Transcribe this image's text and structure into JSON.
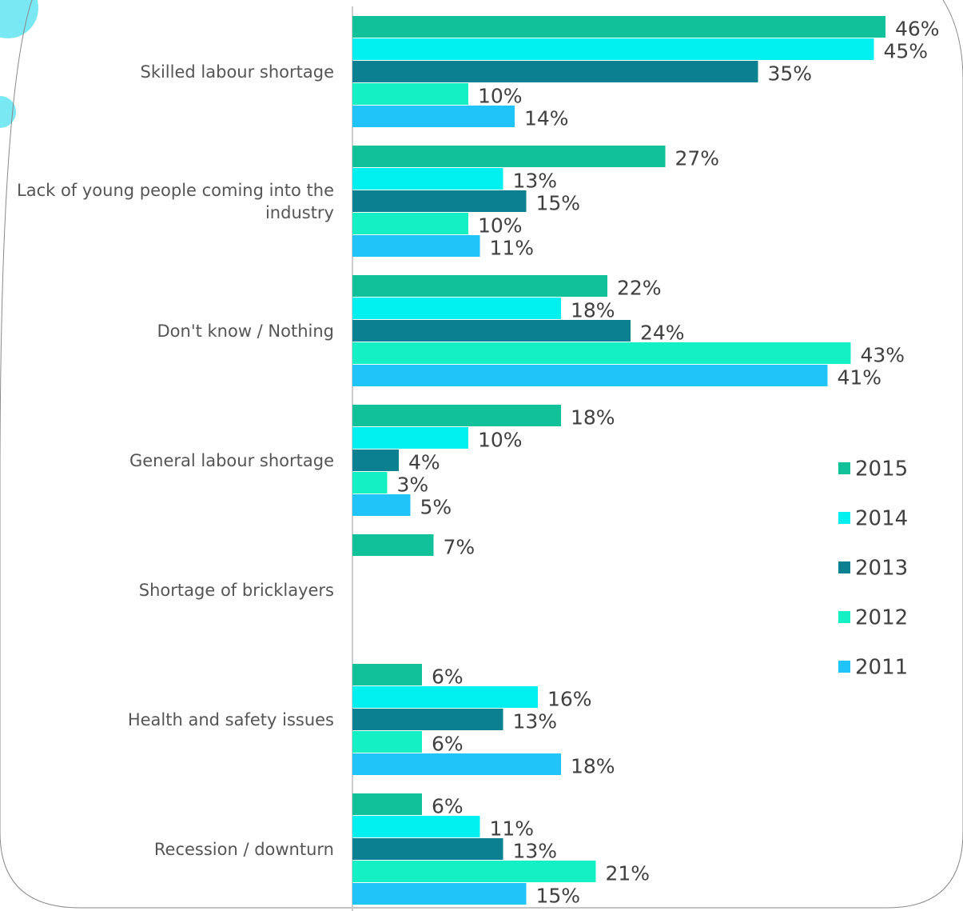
{
  "chart_data": {
    "type": "bar",
    "orientation": "horizontal",
    "categories": [
      "Skilled labour shortage",
      "Lack of young people coming into the industry",
      "Don't know / Nothing",
      "General labour shortage",
      "Shortage of bricklayers",
      "Health and safety issues",
      "Recession / downturn"
    ],
    "series": [
      {
        "name": "2015",
        "color": "#10c19a",
        "values": [
          46,
          27,
          22,
          18,
          7,
          6,
          6
        ],
        "value_labels": [
          "46%",
          "27%",
          "22%",
          "18%",
          "7%",
          "6%",
          "6%"
        ]
      },
      {
        "name": "2014",
        "color": "#00f0f0",
        "values": [
          45,
          13,
          18,
          10,
          null,
          16,
          11
        ],
        "value_labels": [
          "45%",
          "13%",
          "18%",
          "10%",
          null,
          "16%",
          "11%"
        ]
      },
      {
        "name": "2013",
        "color": "#0a8090",
        "values": [
          35,
          15,
          24,
          4,
          null,
          13,
          13
        ],
        "value_labels": [
          "35%",
          "15%",
          "24%",
          "4%",
          null,
          "13%",
          "13%"
        ]
      },
      {
        "name": "2012",
        "color": "#14f0c4",
        "values": [
          10,
          10,
          43,
          3,
          null,
          6,
          21
        ],
        "value_labels": [
          "10%",
          "10%",
          "43%",
          "3%",
          null,
          "6%",
          "21%"
        ]
      },
      {
        "name": "2011",
        "color": "#20c4f8",
        "values": [
          14,
          11,
          41,
          5,
          null,
          18,
          15
        ],
        "value_labels": [
          "14%",
          "11%",
          "41%",
          "5%",
          null,
          "18%",
          "15%"
        ]
      }
    ],
    "xlim": [
      0,
      50
    ],
    "legend": "right"
  }
}
